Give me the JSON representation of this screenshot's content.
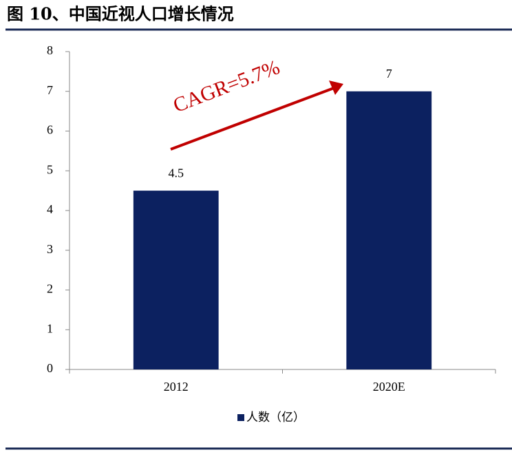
{
  "chart_data": {
    "type": "bar",
    "title": "图 10、中国近视人口增长情况",
    "categories": [
      "2012",
      "2020E"
    ],
    "series": [
      {
        "name": "人数（亿）",
        "color": "#0c2160",
        "values": [
          4.5,
          7
        ]
      }
    ],
    "ylim": [
      0,
      8
    ],
    "yticks": [
      0,
      1,
      2,
      3,
      4,
      5,
      6,
      7,
      8
    ],
    "annotation": "CAGR=5.7%",
    "annotation_color": "#c00000",
    "legend": "bottom"
  }
}
